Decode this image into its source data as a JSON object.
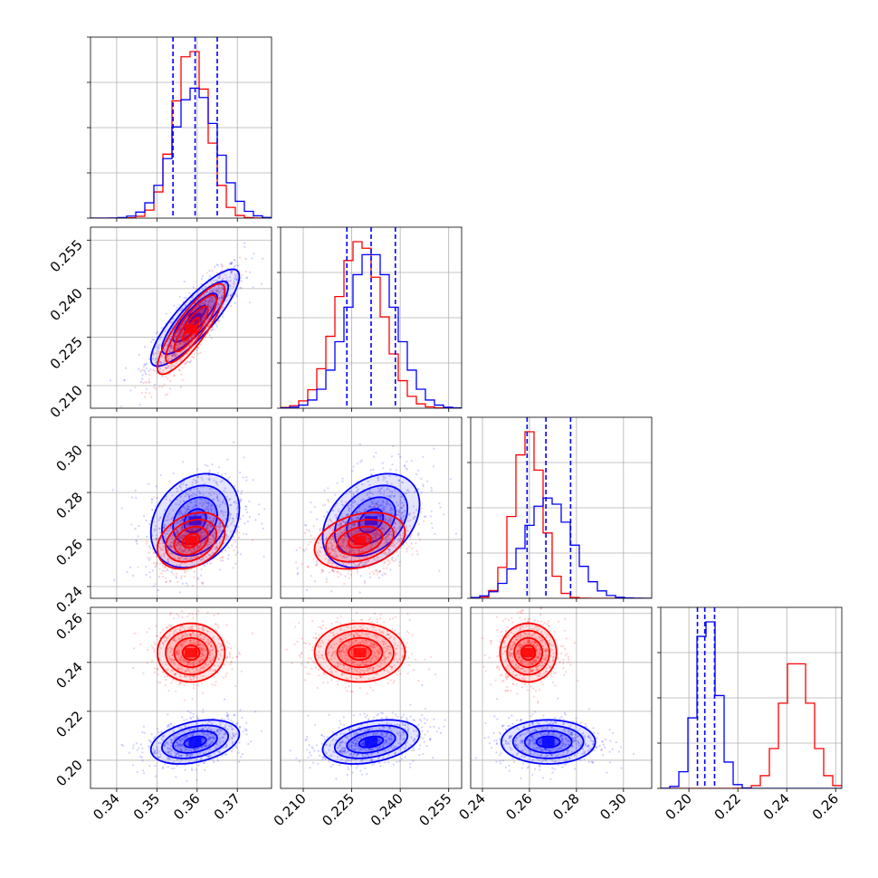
{
  "chart_data": {
    "type": "corner",
    "parameters": 4,
    "series": [
      {
        "name": "",
        "color": "#0000ff",
        "mean": [
          0.3595,
          0.231,
          0.268,
          0.2075
        ],
        "std": [
          0.0055,
          0.0075,
          0.01,
          0.0045
        ]
      },
      {
        "name": "",
        "color": "#ff0000",
        "mean": [
          0.3585,
          0.2275,
          0.2595,
          0.244
        ],
        "std": [
          0.0042,
          0.007,
          0.006,
          0.006
        ]
      }
    ],
    "covariance_shape": {
      "blue": {
        "1-0": 0.85,
        "2-0": 0.25,
        "2-1": 0.35,
        "3-0": 0.35,
        "3-1": 0.35,
        "3-2": 0.0
      },
      "red": {
        "1-0": 0.85,
        "2-0": 0.3,
        "2-1": 0.3,
        "3-0": 0.0,
        "3-1": 0.0,
        "3-2": 0.0
      }
    },
    "quantile_lines": {
      "color": "#0000ff",
      "style": "dashed",
      "values": [
        [
          0.354,
          0.3595,
          0.365
        ],
        [
          0.2235,
          0.231,
          0.2385
        ],
        [
          0.259,
          0.267,
          0.2775
        ],
        [
          0.2035,
          0.2065,
          0.2105
        ]
      ]
    },
    "axis_ranges": [
      [
        0.3335,
        0.3785
      ],
      [
        0.203,
        0.259
      ],
      [
        0.235,
        0.312
      ],
      [
        0.1885,
        0.2625
      ]
    ],
    "ticks": [
      {
        "values": [
          0.34,
          0.35,
          0.36,
          0.37
        ],
        "labels": [
          "0.34",
          "0.35",
          "0.36",
          "0.37"
        ]
      },
      {
        "values": [
          0.21,
          0.225,
          0.24,
          0.255
        ],
        "labels": [
          "0.210",
          "0.225",
          "0.240",
          "0.255"
        ]
      },
      {
        "values": [
          0.24,
          0.26,
          0.28,
          0.3
        ],
        "labels": [
          "0.24",
          "0.26",
          "0.28",
          "0.30"
        ]
      },
      {
        "values": [
          0.2,
          0.22,
          0.24,
          0.26
        ],
        "labels": [
          "0.20",
          "0.22",
          "0.24",
          "0.26"
        ]
      }
    ],
    "histogram_bins": 20,
    "grid": true,
    "title": "",
    "xlabel": "",
    "ylabel": ""
  }
}
